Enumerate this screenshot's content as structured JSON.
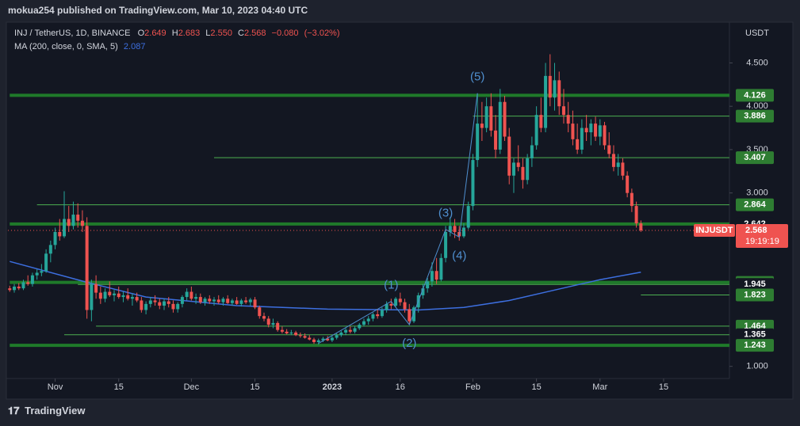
{
  "header": {
    "publisher": "mokua254 published on TradingView.com, Mar 10, 2023 04:40 UTC"
  },
  "footer": {
    "brand": "TradingView"
  },
  "chart_data": {
    "type": "candlestick",
    "symbol": "INJ / TetherUS, 1D, BINANCE",
    "ticker": "INJUSDT",
    "currency": "USDT",
    "countdown": "19:19:19",
    "legend": {
      "names": [
        "O",
        "H",
        "L",
        "C"
      ],
      "values": [
        2.649,
        2.683,
        {
          "value": 2.55,
          "label": "2.550"
        },
        2.568
      ],
      "change": {
        "value": -0.08,
        "label": "−0.080"
      },
      "change_pct": {
        "value": -3.02,
        "label": "(−3.02%)"
      }
    },
    "colors": {
      "up": "#26a69a",
      "down": "#ef5350"
    },
    "candles": [
      [
        1.9,
        1.93,
        1.86,
        1.88
      ],
      [
        1.88,
        1.95,
        1.85,
        1.92
      ],
      [
        1.92,
        1.96,
        1.88,
        1.9
      ],
      [
        1.9,
        2.0,
        1.88,
        1.97
      ],
      [
        1.97,
        2.05,
        1.93,
        1.95
      ],
      [
        1.95,
        2.08,
        1.92,
        2.05
      ],
      [
        2.05,
        2.12,
        2.0,
        2.08
      ],
      [
        2.08,
        2.18,
        2.04,
        2.1
      ],
      [
        2.1,
        2.35,
        2.08,
        2.3
      ],
      [
        2.3,
        2.45,
        2.2,
        2.4
      ],
      [
        2.4,
        2.6,
        2.35,
        2.55
      ],
      [
        2.55,
        2.7,
        2.45,
        2.5
      ],
      [
        2.5,
        3.02,
        2.48,
        2.7
      ],
      [
        2.7,
        2.85,
        2.55,
        2.62
      ],
      [
        2.62,
        2.9,
        2.58,
        2.75
      ],
      [
        2.75,
        2.88,
        2.6,
        2.68
      ],
      [
        2.68,
        2.8,
        2.55,
        2.62
      ],
      [
        2.62,
        2.72,
        1.55,
        1.65
      ],
      [
        1.65,
        2.0,
        1.52,
        1.95
      ],
      [
        1.95,
        2.05,
        1.78,
        1.85
      ],
      [
        1.85,
        1.92,
        1.72,
        1.78
      ],
      [
        1.78,
        1.9,
        1.74,
        1.86
      ],
      [
        1.86,
        1.98,
        1.8,
        1.82
      ],
      [
        1.82,
        1.88,
        1.75,
        1.84
      ],
      [
        1.84,
        1.92,
        1.78,
        1.8
      ],
      [
        1.8,
        1.86,
        1.74,
        1.82
      ],
      [
        1.82,
        1.9,
        1.76,
        1.78
      ],
      [
        1.78,
        1.84,
        1.7,
        1.8
      ],
      [
        1.8,
        1.85,
        1.74,
        1.76
      ],
      [
        1.76,
        1.8,
        1.62,
        1.65
      ],
      [
        1.65,
        1.75,
        1.6,
        1.72
      ],
      [
        1.72,
        1.8,
        1.68,
        1.76
      ],
      [
        1.76,
        1.82,
        1.7,
        1.74
      ],
      [
        1.74,
        1.78,
        1.66,
        1.7
      ],
      [
        1.7,
        1.78,
        1.65,
        1.75
      ],
      [
        1.75,
        1.8,
        1.68,
        1.72
      ],
      [
        1.72,
        1.76,
        1.62,
        1.66
      ],
      [
        1.66,
        1.74,
        1.62,
        1.72
      ],
      [
        1.72,
        1.82,
        1.68,
        1.8
      ],
      [
        1.8,
        1.9,
        1.76,
        1.86
      ],
      [
        1.86,
        1.92,
        1.76,
        1.78
      ],
      [
        1.78,
        1.84,
        1.72,
        1.8
      ],
      [
        1.8,
        1.84,
        1.72,
        1.74
      ],
      [
        1.74,
        1.8,
        1.7,
        1.78
      ],
      [
        1.78,
        1.82,
        1.72,
        1.75
      ],
      [
        1.75,
        1.8,
        1.7,
        1.77
      ],
      [
        1.77,
        1.82,
        1.72,
        1.74
      ],
      [
        1.74,
        1.8,
        1.7,
        1.78
      ],
      [
        1.78,
        1.82,
        1.72,
        1.73
      ],
      [
        1.73,
        1.78,
        1.7,
        1.76
      ],
      [
        1.76,
        1.8,
        1.71,
        1.72
      ],
      [
        1.72,
        1.78,
        1.69,
        1.76
      ],
      [
        1.76,
        1.8,
        1.72,
        1.74
      ],
      [
        1.74,
        1.79,
        1.7,
        1.77
      ],
      [
        1.77,
        1.8,
        1.66,
        1.68
      ],
      [
        1.68,
        1.7,
        1.55,
        1.58
      ],
      [
        1.58,
        1.62,
        1.52,
        1.55
      ],
      [
        1.55,
        1.58,
        1.45,
        1.48
      ],
      [
        1.48,
        1.55,
        1.44,
        1.5
      ],
      [
        1.5,
        1.52,
        1.4,
        1.42
      ],
      [
        1.42,
        1.46,
        1.38,
        1.4
      ],
      [
        1.4,
        1.43,
        1.37,
        1.38
      ],
      [
        1.38,
        1.42,
        1.36,
        1.39
      ],
      [
        1.39,
        1.41,
        1.35,
        1.36
      ],
      [
        1.36,
        1.39,
        1.33,
        1.35
      ],
      [
        1.35,
        1.38,
        1.32,
        1.33
      ],
      [
        1.33,
        1.36,
        1.3,
        1.31
      ],
      [
        1.31,
        1.33,
        1.26,
        1.28
      ],
      [
        1.28,
        1.32,
        1.25,
        1.3
      ],
      [
        1.3,
        1.34,
        1.28,
        1.32
      ],
      [
        1.32,
        1.35,
        1.29,
        1.3
      ],
      [
        1.3,
        1.35,
        1.28,
        1.33
      ],
      [
        1.33,
        1.38,
        1.31,
        1.36
      ],
      [
        1.36,
        1.41,
        1.34,
        1.39
      ],
      [
        1.39,
        1.44,
        1.36,
        1.42
      ],
      [
        1.42,
        1.46,
        1.38,
        1.4
      ],
      [
        1.4,
        1.46,
        1.38,
        1.44
      ],
      [
        1.44,
        1.5,
        1.42,
        1.48
      ],
      [
        1.48,
        1.55,
        1.46,
        1.52
      ],
      [
        1.52,
        1.58,
        1.48,
        1.55
      ],
      [
        1.55,
        1.62,
        1.52,
        1.6
      ],
      [
        1.6,
        1.66,
        1.55,
        1.58
      ],
      [
        1.58,
        1.68,
        1.56,
        1.65
      ],
      [
        1.65,
        1.75,
        1.62,
        1.72
      ],
      [
        1.72,
        1.78,
        1.66,
        1.7
      ],
      [
        1.7,
        1.8,
        1.68,
        1.78
      ],
      [
        1.78,
        1.85,
        1.7,
        1.74
      ],
      [
        1.74,
        1.78,
        1.62,
        1.66
      ],
      [
        1.66,
        1.72,
        1.48,
        1.52
      ],
      [
        1.52,
        1.7,
        1.5,
        1.68
      ],
      [
        1.68,
        1.85,
        1.62,
        1.82
      ],
      [
        1.82,
        1.95,
        1.78,
        1.9
      ],
      [
        1.9,
        2.02,
        1.85,
        1.98
      ],
      [
        1.98,
        2.2,
        1.92,
        2.1
      ],
      [
        2.1,
        2.25,
        1.95,
        2.0
      ],
      [
        2.0,
        2.3,
        1.98,
        2.25
      ],
      [
        2.25,
        2.62,
        2.2,
        2.55
      ],
      [
        2.55,
        2.72,
        2.5,
        2.62
      ],
      [
        2.62,
        2.7,
        2.48,
        2.55
      ],
      [
        2.55,
        2.62,
        2.45,
        2.5
      ],
      [
        2.5,
        2.65,
        2.48,
        2.6
      ],
      [
        2.6,
        2.9,
        2.58,
        2.85
      ],
      [
        2.85,
        3.45,
        2.8,
        3.38
      ],
      [
        3.38,
        4.15,
        3.3,
        3.8
      ],
      [
        3.8,
        4.05,
        3.6,
        3.75
      ],
      [
        3.75,
        4.1,
        3.7,
        4.0
      ],
      [
        4.0,
        4.15,
        3.65,
        3.72
      ],
      [
        3.72,
        3.9,
        3.4,
        3.5
      ],
      [
        3.5,
        4.2,
        3.45,
        4.05
      ],
      [
        4.05,
        4.12,
        3.6,
        3.65
      ],
      [
        3.65,
        3.75,
        3.1,
        3.2
      ],
      [
        3.2,
        3.4,
        3.0,
        3.35
      ],
      [
        3.35,
        3.55,
        3.25,
        3.3
      ],
      [
        3.3,
        3.4,
        3.05,
        3.15
      ],
      [
        3.15,
        3.45,
        3.1,
        3.4
      ],
      [
        3.4,
        3.65,
        3.3,
        3.55
      ],
      [
        3.55,
        4.0,
        3.5,
        3.9
      ],
      [
        3.9,
        4.1,
        3.7,
        3.75
      ],
      [
        3.75,
        4.5,
        3.7,
        4.35
      ],
      [
        4.35,
        4.6,
        4.0,
        4.1
      ],
      [
        4.1,
        4.5,
        3.95,
        4.3
      ],
      [
        4.3,
        4.4,
        3.9,
        4.0
      ],
      [
        4.0,
        4.2,
        3.8,
        3.9
      ],
      [
        3.9,
        4.05,
        3.7,
        3.8
      ],
      [
        3.8,
        3.95,
        3.55,
        3.62
      ],
      [
        3.62,
        3.8,
        3.45,
        3.5
      ],
      [
        3.5,
        3.85,
        3.45,
        3.75
      ],
      [
        3.75,
        3.9,
        3.6,
        3.7
      ],
      [
        3.7,
        3.85,
        3.55,
        3.8
      ],
      [
        3.8,
        3.88,
        3.6,
        3.65
      ],
      [
        3.65,
        3.85,
        3.55,
        3.78
      ],
      [
        3.78,
        3.82,
        3.5,
        3.55
      ],
      [
        3.55,
        3.7,
        3.4,
        3.45
      ],
      [
        3.45,
        3.55,
        3.25,
        3.3
      ],
      [
        3.3,
        3.45,
        3.2,
        3.35
      ],
      [
        3.35,
        3.4,
        3.15,
        3.2
      ],
      [
        3.2,
        3.25,
        2.95,
        3.0
      ],
      [
        3.0,
        3.05,
        2.78,
        2.85
      ],
      [
        2.85,
        2.9,
        2.6,
        2.649
      ],
      [
        2.649,
        2.683,
        2.55,
        2.568
      ]
    ],
    "ma": {
      "name": "MA (200, close, 0, SMA, 5)",
      "value": 2.087,
      "color": "#3d6fe0",
      "x": [
        0,
        17,
        30,
        50,
        70,
        90,
        100,
        110,
        120,
        130,
        139
      ],
      "values": [
        2.21,
        1.97,
        1.8,
        1.7,
        1.66,
        1.65,
        1.68,
        1.76,
        1.88,
        2.0,
        2.087
      ]
    },
    "last_price": 2.568,
    "levels": [
      {
        "value": 4.126,
        "from": 0,
        "thick": true,
        "boxed": true
      },
      {
        "value": 3.886,
        "from": 102,
        "thick": false,
        "boxed": true
      },
      {
        "value": 3.407,
        "from": 45,
        "thick": false,
        "boxed": true
      },
      {
        "value": 2.864,
        "from": 6,
        "thick": false,
        "boxed": true
      },
      {
        "value": 2.642,
        "from": 0,
        "thick": true,
        "boxed": false
      },
      {
        "value": 1.969,
        "from": 0,
        "thick": true,
        "boxed": true
      },
      {
        "value": 1.945,
        "from": 15,
        "thick": false,
        "boxed": false
      },
      {
        "value": 1.823,
        "from": 139,
        "thick": false,
        "boxed": true
      },
      {
        "value": 1.464,
        "from": 19,
        "thick": false,
        "boxed": true
      },
      {
        "value": 1.365,
        "from": 12,
        "thick": false,
        "boxed": false
      },
      {
        "value": 1.243,
        "from": 0,
        "thick": true,
        "boxed": true
      }
    ],
    "wave": {
      "color": "#4f8fcf",
      "x": [
        68,
        84,
        88,
        96,
        99,
        103
      ],
      "values": [
        1.265,
        1.75,
        1.48,
        2.58,
        2.49,
        4.15
      ],
      "labels": [
        null,
        "(1)",
        "(2)",
        "(3)",
        "(4)",
        "(5)"
      ]
    },
    "xlim": [
      -0.4,
      158.5
    ],
    "ylim": [
      0.86,
      4.97
    ],
    "xticks": [
      {
        "value": 10,
        "label": "Nov"
      },
      {
        "value": 24,
        "label": "15"
      },
      {
        "value": 40,
        "label": "Dec"
      },
      {
        "value": 54,
        "label": "15"
      },
      {
        "value": 71,
        "label": "2023"
      },
      {
        "value": 86,
        "label": "16"
      },
      {
        "value": 102,
        "label": "Feb"
      },
      {
        "value": 116,
        "label": "15"
      },
      {
        "value": 130,
        "label": "Mar"
      },
      {
        "value": 144,
        "label": "15"
      }
    ],
    "yticks": [
      {
        "value": 1,
        "label": "1.000"
      },
      {
        "value": 3,
        "label": "3.000"
      },
      {
        "value": 3.5,
        "label": "3.500"
      },
      {
        "value": 4,
        "label": "4.000"
      },
      {
        "value": 4.5,
        "label": "4.500"
      }
    ],
    "grid": false
  }
}
